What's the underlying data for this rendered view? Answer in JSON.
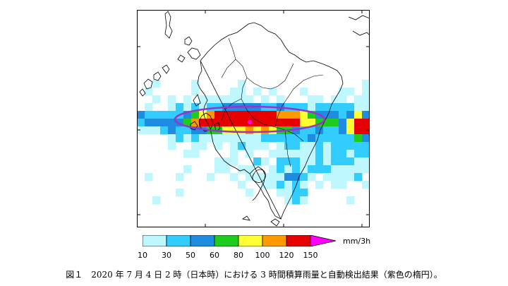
{
  "figure": {
    "caption": "図１　2020 年 7 月 4 日 2 時（日本時）における 3 時間積算雨量と自動検出結果（紫色の楕円）。"
  },
  "legend": {
    "unit": "mm/3h",
    "ticks": [
      "10",
      "30",
      "50",
      "60",
      "80",
      "100",
      "120",
      "150"
    ],
    "colors": [
      "#bff7ff",
      "#33ccff",
      "#1e8ce0",
      "#1ecc1e",
      "#ffff33",
      "#ff9900",
      "#e60000",
      "#ff00ff"
    ],
    "band_colors": [
      "#ffffff",
      "#bff7ff",
      "#33ccff",
      "#1e8ce0",
      "#1ecc1e",
      "#ffff33",
      "#ff9900",
      "#e60000"
    ]
  },
  "map": {
    "detection_color": "#9933cc",
    "coastline_color": "#000000"
  }
}
